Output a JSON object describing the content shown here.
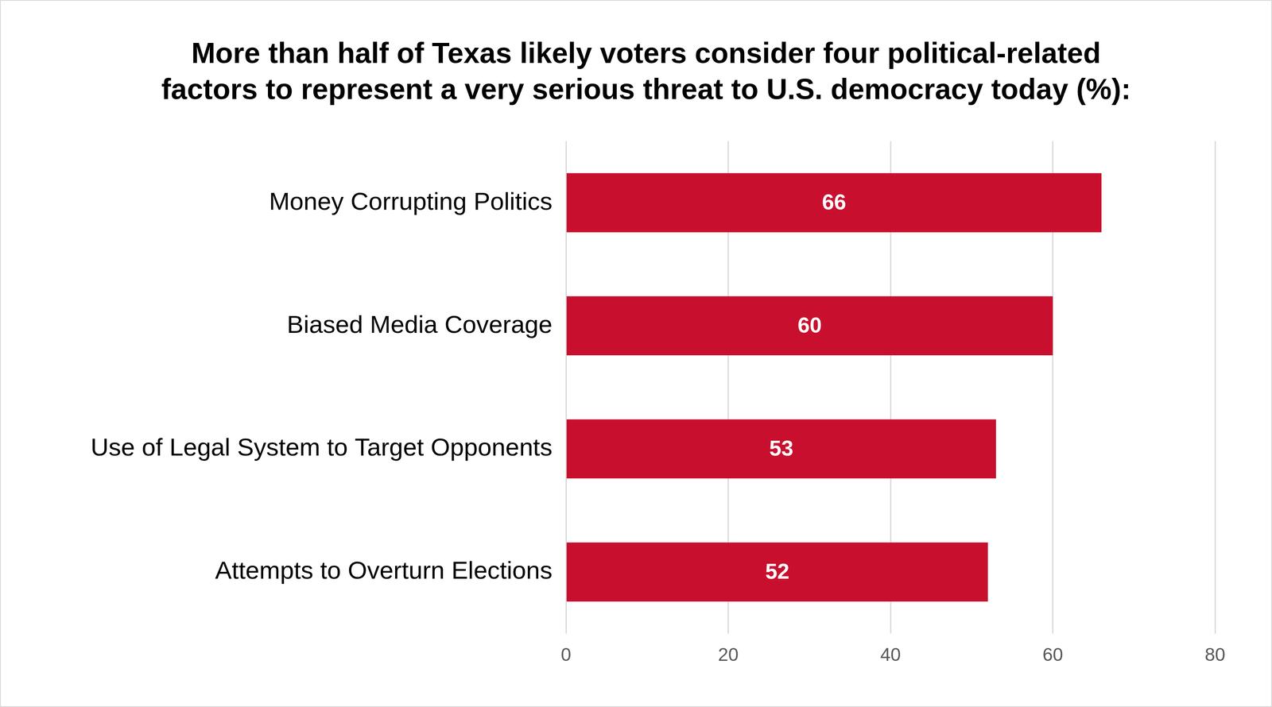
{
  "chart_data": {
    "type": "bar",
    "orientation": "horizontal",
    "title": [
      "More than half of Texas likely voters consider four political-related",
      "factors to represent a very serious threat to U.S. democracy today (%):"
    ],
    "categories": [
      "Money Corrupting Politics",
      "Biased Media Coverage",
      "Use of Legal System to Target Opponents",
      "Attempts to Overturn Elections"
    ],
    "values": [
      66,
      60,
      53,
      52
    ],
    "color": "#c8102e",
    "xlim": [
      0,
      80
    ],
    "xticks": [
      0,
      20,
      40,
      60,
      80
    ],
    "grid": true,
    "data_labels": true
  }
}
